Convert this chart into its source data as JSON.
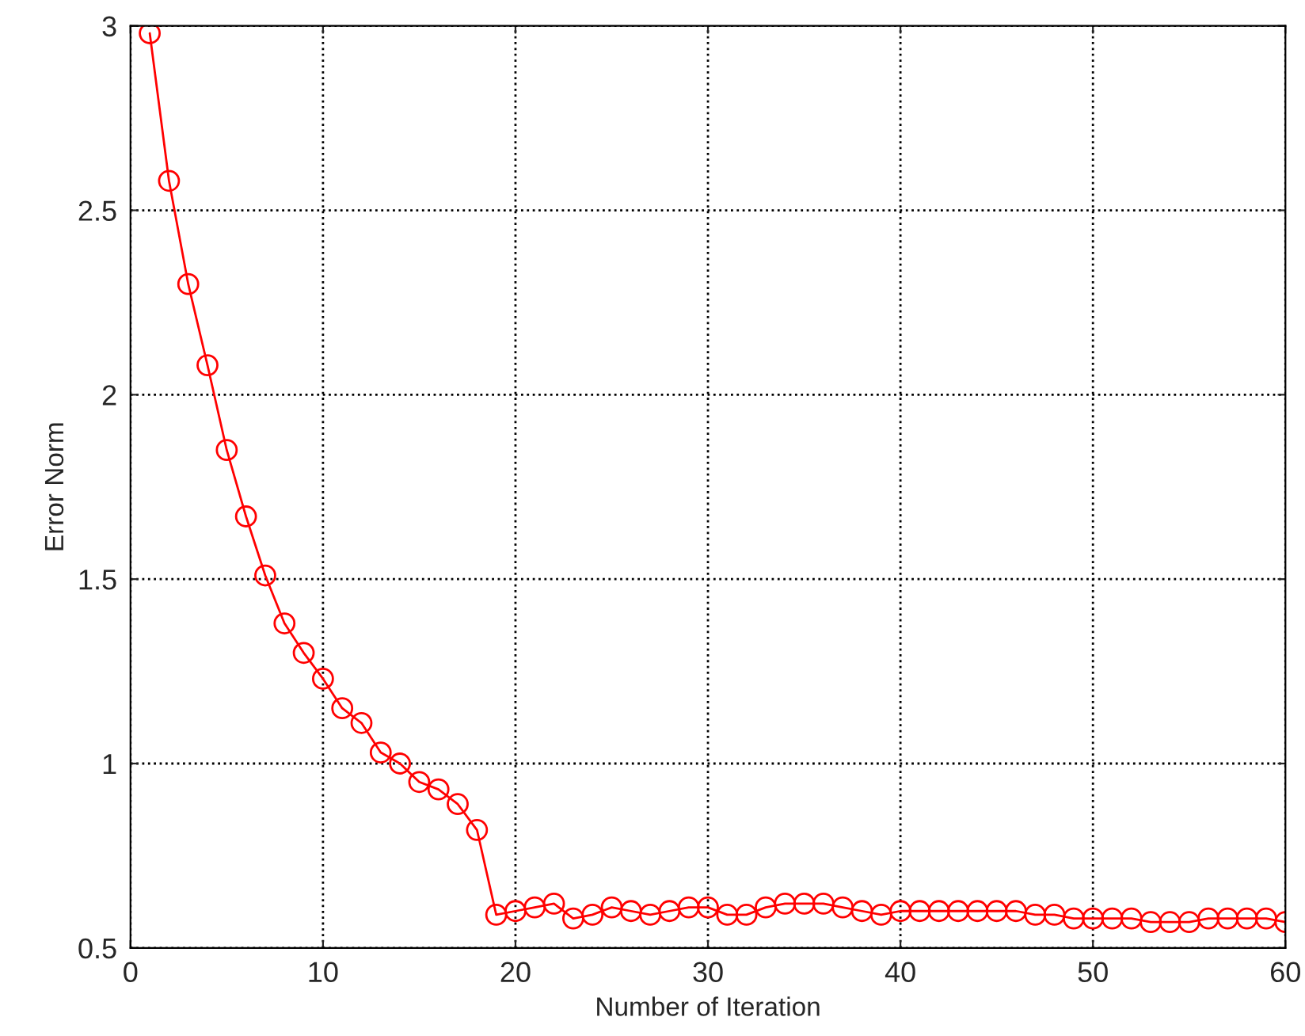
{
  "chart_data": {
    "type": "line",
    "xlabel": "Number of Iteration",
    "ylabel": "Error Norm",
    "x": [
      1,
      2,
      3,
      4,
      5,
      6,
      7,
      8,
      9,
      10,
      11,
      12,
      13,
      14,
      15,
      16,
      17,
      18,
      19,
      20,
      21,
      22,
      23,
      24,
      25,
      26,
      27,
      28,
      29,
      30,
      31,
      32,
      33,
      34,
      35,
      36,
      37,
      38,
      39,
      40,
      41,
      42,
      43,
      44,
      45,
      46,
      47,
      48,
      49,
      50,
      51,
      52,
      53,
      54,
      55,
      56,
      57,
      58,
      59,
      60
    ],
    "series": [
      {
        "color": "#ff0000",
        "values": [
          2.98,
          2.58,
          2.3,
          2.08,
          1.85,
          1.67,
          1.51,
          1.38,
          1.3,
          1.23,
          1.15,
          1.11,
          1.03,
          1.0,
          0.95,
          0.93,
          0.89,
          0.82,
          0.59,
          0.6,
          0.61,
          0.62,
          0.58,
          0.59,
          0.61,
          0.6,
          0.59,
          0.6,
          0.61,
          0.61,
          0.59,
          0.59,
          0.61,
          0.62,
          0.62,
          0.62,
          0.61,
          0.6,
          0.59,
          0.6,
          0.6,
          0.6,
          0.6,
          0.6,
          0.6,
          0.6,
          0.59,
          0.59,
          0.58,
          0.58,
          0.58,
          0.58,
          0.57,
          0.57,
          0.57,
          0.58,
          0.58,
          0.58,
          0.58,
          0.57
        ]
      }
    ],
    "xlim": [
      0,
      60
    ],
    "xticks": [
      0,
      10,
      20,
      30,
      40,
      50,
      60
    ],
    "ylim": [
      0.5,
      3
    ],
    "yticks": [
      0.5,
      1,
      1.5,
      2,
      2.5,
      3
    ],
    "grid": true,
    "marker": "circle",
    "line_style": "solid"
  }
}
